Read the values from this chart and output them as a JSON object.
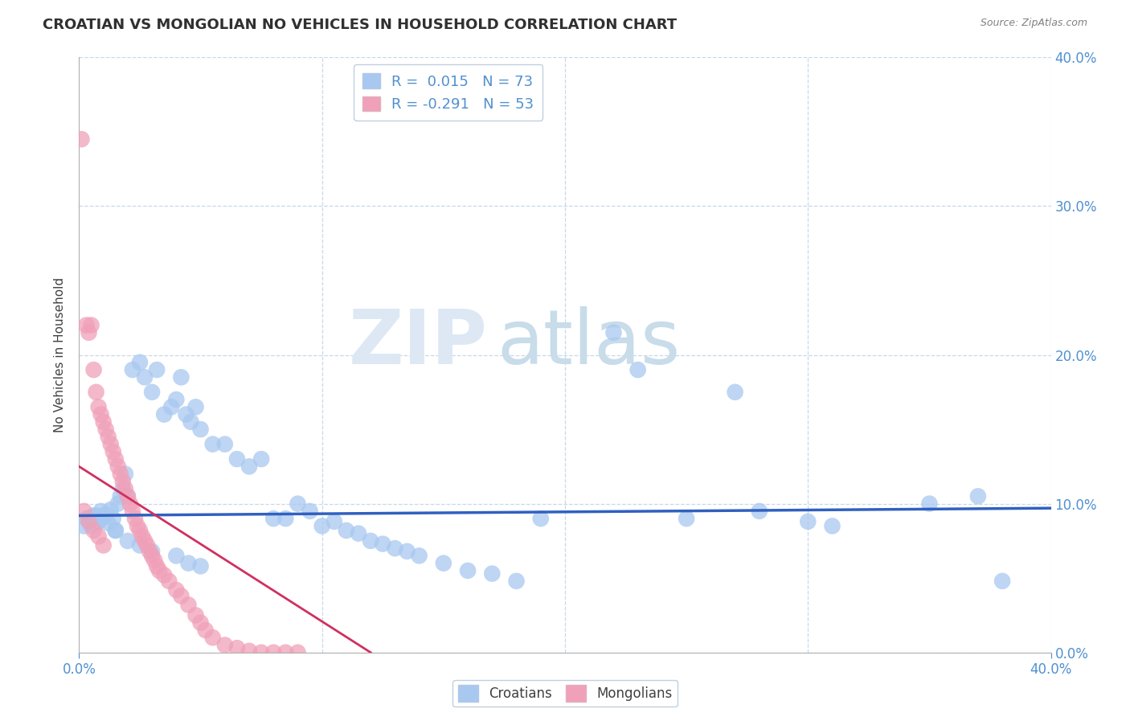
{
  "title": "CROATIAN VS MONGOLIAN NO VEHICLES IN HOUSEHOLD CORRELATION CHART",
  "source": "Source: ZipAtlas.com",
  "ylabel": "No Vehicles in Household",
  "legend_r_cro": "R =  0.015",
  "legend_n_cro": "N = 73",
  "legend_r_mon": "R = -0.291",
  "legend_n_mon": "N = 53",
  "croatian_color": "#a8c8f0",
  "mongolian_color": "#f0a0b8",
  "croatian_line_color": "#3060c0",
  "mongolian_line_color": "#d03060",
  "watermark_zip": "ZIP",
  "watermark_atlas": "atlas",
  "xlim": [
    0.0,
    0.4
  ],
  "ylim": [
    0.0,
    0.4
  ],
  "background_color": "#ffffff",
  "grid_color": "#c8d8e8",
  "title_color": "#303030",
  "source_color": "#808080",
  "tick_color": "#5090d0",
  "croatian_x": [
    0.003,
    0.005,
    0.007,
    0.008,
    0.009,
    0.01,
    0.011,
    0.012,
    0.013,
    0.014,
    0.015,
    0.016,
    0.017,
    0.018,
    0.019,
    0.02,
    0.022,
    0.025,
    0.027,
    0.03,
    0.032,
    0.035,
    0.038,
    0.04,
    0.042,
    0.044,
    0.046,
    0.048,
    0.05,
    0.055,
    0.06,
    0.065,
    0.07,
    0.075,
    0.08,
    0.085,
    0.09,
    0.095,
    0.1,
    0.105,
    0.11,
    0.115,
    0.12,
    0.125,
    0.13,
    0.135,
    0.14,
    0.15,
    0.16,
    0.17,
    0.18,
    0.19,
    0.22,
    0.23,
    0.25,
    0.27,
    0.28,
    0.3,
    0.31,
    0.35,
    0.37,
    0.38,
    0.002,
    0.004,
    0.006,
    0.008,
    0.015,
    0.02,
    0.025,
    0.03,
    0.04,
    0.045,
    0.05
  ],
  "croatian_y": [
    0.09,
    0.085,
    0.092,
    0.088,
    0.095,
    0.091,
    0.093,
    0.087,
    0.096,
    0.09,
    0.082,
    0.1,
    0.105,
    0.11,
    0.12,
    0.105,
    0.19,
    0.195,
    0.185,
    0.175,
    0.19,
    0.16,
    0.165,
    0.17,
    0.185,
    0.16,
    0.155,
    0.165,
    0.15,
    0.14,
    0.14,
    0.13,
    0.125,
    0.13,
    0.09,
    0.09,
    0.1,
    0.095,
    0.085,
    0.088,
    0.082,
    0.08,
    0.075,
    0.073,
    0.07,
    0.068,
    0.065,
    0.06,
    0.055,
    0.053,
    0.048,
    0.09,
    0.215,
    0.19,
    0.09,
    0.175,
    0.095,
    0.088,
    0.085,
    0.1,
    0.105,
    0.048,
    0.085,
    0.09,
    0.092,
    0.088,
    0.082,
    0.075,
    0.072,
    0.068,
    0.065,
    0.06,
    0.058
  ],
  "mongolian_x": [
    0.001,
    0.003,
    0.004,
    0.005,
    0.006,
    0.007,
    0.008,
    0.009,
    0.01,
    0.011,
    0.012,
    0.013,
    0.014,
    0.015,
    0.016,
    0.017,
    0.018,
    0.019,
    0.02,
    0.021,
    0.022,
    0.023,
    0.024,
    0.025,
    0.026,
    0.027,
    0.028,
    0.029,
    0.03,
    0.031,
    0.032,
    0.033,
    0.035,
    0.037,
    0.04,
    0.042,
    0.045,
    0.048,
    0.05,
    0.052,
    0.055,
    0.06,
    0.065,
    0.07,
    0.075,
    0.08,
    0.085,
    0.09,
    0.002,
    0.004,
    0.006,
    0.008,
    0.01
  ],
  "mongolian_y": [
    0.345,
    0.22,
    0.215,
    0.22,
    0.19,
    0.175,
    0.165,
    0.16,
    0.155,
    0.15,
    0.145,
    0.14,
    0.135,
    0.13,
    0.125,
    0.12,
    0.115,
    0.11,
    0.105,
    0.1,
    0.095,
    0.09,
    0.085,
    0.082,
    0.078,
    0.075,
    0.072,
    0.068,
    0.065,
    0.062,
    0.058,
    0.055,
    0.052,
    0.048,
    0.042,
    0.038,
    0.032,
    0.025,
    0.02,
    0.015,
    0.01,
    0.005,
    0.003,
    0.001,
    0.0,
    0.0,
    0.0,
    0.0,
    0.095,
    0.088,
    0.082,
    0.078,
    0.072
  ],
  "cro_line_x0": 0.0,
  "cro_line_x1": 0.4,
  "cro_line_y0": 0.092,
  "cro_line_y1": 0.097,
  "mon_line_x0": 0.0,
  "mon_line_x1": 0.12,
  "mon_line_y0": 0.125,
  "mon_line_y1": 0.0
}
